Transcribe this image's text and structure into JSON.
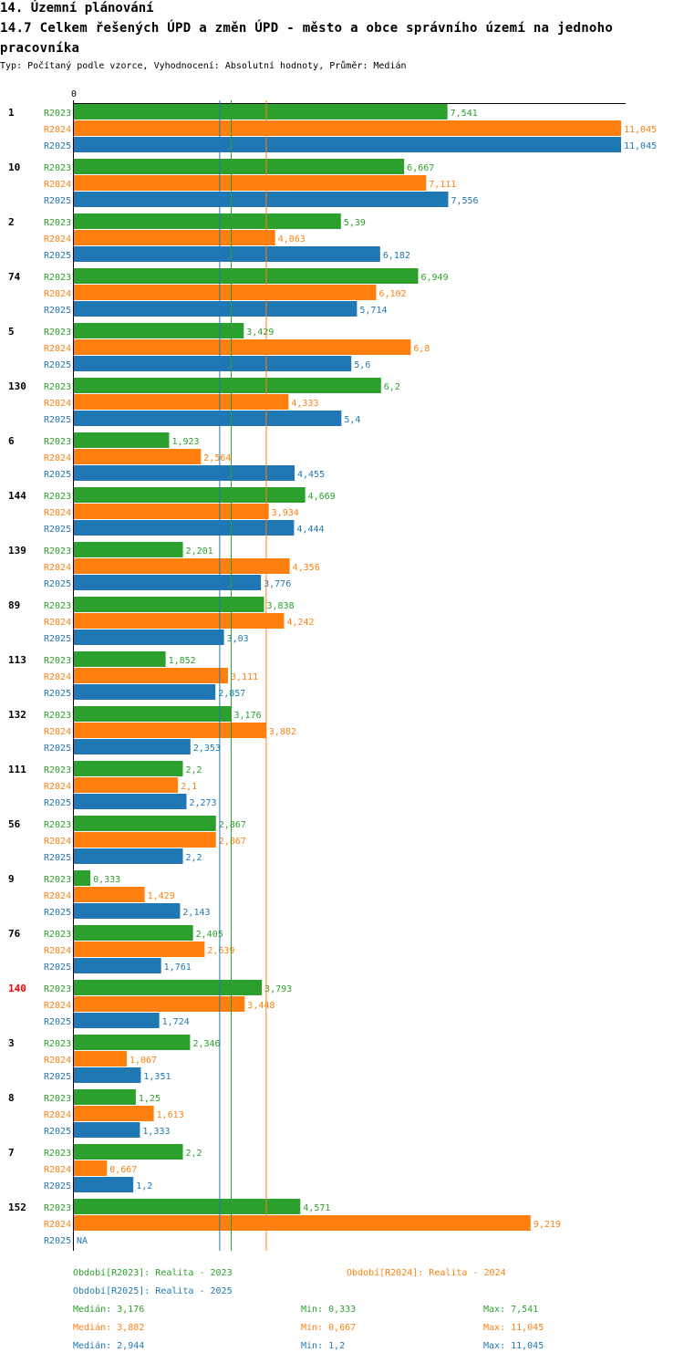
{
  "header": {
    "section": "14. Územní plánování",
    "title": "14.7 Celkem řešených ÚPD a změn ÚPD - město a obce správního území  na jednoho pracovníka",
    "subtitle": "Typ: Počítaný podle vzorce, Vyhodnocení: Absolutní hodnoty, Průměr: Medián"
  },
  "colors": {
    "R2023": "#2ca02c",
    "R2024": "#ff7f0e",
    "R2025": "#1f77b4",
    "highlight": "#ff0000"
  },
  "chart_data": {
    "type": "bar",
    "orientation": "horizontal",
    "axis_zero_label": "0",
    "xlim": [
      0,
      11.045
    ],
    "series_names": [
      "R2023",
      "R2024",
      "R2025"
    ],
    "groups": [
      {
        "label": "1",
        "highlight": false,
        "values": [
          7.541,
          11.045,
          11.045
        ],
        "labels": [
          "7,541",
          "11,045",
          "11,045"
        ]
      },
      {
        "label": "10",
        "highlight": false,
        "values": [
          6.667,
          7.111,
          7.556
        ],
        "labels": [
          "6,667",
          "7,111",
          "7,556"
        ]
      },
      {
        "label": "2",
        "highlight": false,
        "values": [
          5.39,
          4.063,
          6.182
        ],
        "labels": [
          "5,39",
          "4,063",
          "6,182"
        ]
      },
      {
        "label": "74",
        "highlight": false,
        "values": [
          6.949,
          6.102,
          5.714
        ],
        "labels": [
          "6,949",
          "6,102",
          "5,714"
        ]
      },
      {
        "label": "5",
        "highlight": false,
        "values": [
          3.429,
          6.8,
          5.6
        ],
        "labels": [
          "3,429",
          "6,8",
          "5,6"
        ]
      },
      {
        "label": "130",
        "highlight": false,
        "values": [
          6.2,
          4.333,
          5.4
        ],
        "labels": [
          "6,2",
          "4,333",
          "5,4"
        ]
      },
      {
        "label": "6",
        "highlight": false,
        "values": [
          1.923,
          2.564,
          4.455
        ],
        "labels": [
          "1,923",
          "2,564",
          "4,455"
        ]
      },
      {
        "label": "144",
        "highlight": false,
        "values": [
          4.669,
          3.934,
          4.444
        ],
        "labels": [
          "4,669",
          "3,934",
          "4,444"
        ]
      },
      {
        "label": "139",
        "highlight": false,
        "values": [
          2.201,
          4.356,
          3.776
        ],
        "labels": [
          "2,201",
          "4,356",
          "3,776"
        ]
      },
      {
        "label": "89",
        "highlight": false,
        "values": [
          3.838,
          4.242,
          3.03
        ],
        "labels": [
          "3,838",
          "4,242",
          "3,03"
        ]
      },
      {
        "label": "113",
        "highlight": false,
        "values": [
          1.852,
          3.111,
          2.857
        ],
        "labels": [
          "1,852",
          "3,111",
          "2,857"
        ]
      },
      {
        "label": "132",
        "highlight": false,
        "values": [
          3.176,
          3.882,
          2.353
        ],
        "labels": [
          "3,176",
          "3,882",
          "2,353"
        ]
      },
      {
        "label": "111",
        "highlight": false,
        "values": [
          2.2,
          2.1,
          2.273
        ],
        "labels": [
          "2,2",
          "2,1",
          "2,273"
        ]
      },
      {
        "label": "56",
        "highlight": false,
        "values": [
          2.867,
          2.867,
          2.2
        ],
        "labels": [
          "2,867",
          "2,867",
          "2,2"
        ]
      },
      {
        "label": "9",
        "highlight": false,
        "values": [
          0.333,
          1.429,
          2.143
        ],
        "labels": [
          "0,333",
          "1,429",
          "2,143"
        ]
      },
      {
        "label": "76",
        "highlight": false,
        "values": [
          2.405,
          2.639,
          1.761
        ],
        "labels": [
          "2,405",
          "2,639",
          "1,761"
        ]
      },
      {
        "label": "140",
        "highlight": true,
        "values": [
          3.793,
          3.448,
          1.724
        ],
        "labels": [
          "3,793",
          "3,448",
          "1,724"
        ]
      },
      {
        "label": "3",
        "highlight": false,
        "values": [
          2.346,
          1.067,
          1.351
        ],
        "labels": [
          "2,346",
          "1,067",
          "1,351"
        ]
      },
      {
        "label": "8",
        "highlight": false,
        "values": [
          1.25,
          1.613,
          1.333
        ],
        "labels": [
          "1,25",
          "1,613",
          "1,333"
        ]
      },
      {
        "label": "7",
        "highlight": false,
        "values": [
          2.2,
          0.667,
          1.2
        ],
        "labels": [
          "2,2",
          "0,667",
          "1,2"
        ]
      },
      {
        "label": "152",
        "highlight": false,
        "values": [
          4.571,
          9.219,
          null
        ],
        "labels": [
          "4,571",
          "9,219",
          "NA"
        ]
      }
    ],
    "medians": {
      "R2023": 3.176,
      "R2024": 3.882,
      "R2025": 2.944
    }
  },
  "legend": {
    "periods": [
      {
        "key": "R2023",
        "text": "Období[R2023]: Realita - 2023"
      },
      {
        "key": "R2024",
        "text": "Období[R2024]: Realita - 2024"
      },
      {
        "key": "R2025",
        "text": "Období[R2025]: Realita - 2025"
      }
    ],
    "stats": [
      {
        "key": "R2023",
        "median": "Medián: 3,176",
        "min": "Min: 0,333",
        "max": "Max: 7,541"
      },
      {
        "key": "R2024",
        "median": "Medián: 3,882",
        "min": "Min: 0,667",
        "max": "Max: 11,045"
      },
      {
        "key": "R2025",
        "median": "Medián: 2,944",
        "min": "Min: 1,2",
        "max": "Max: 11,045"
      }
    ]
  }
}
